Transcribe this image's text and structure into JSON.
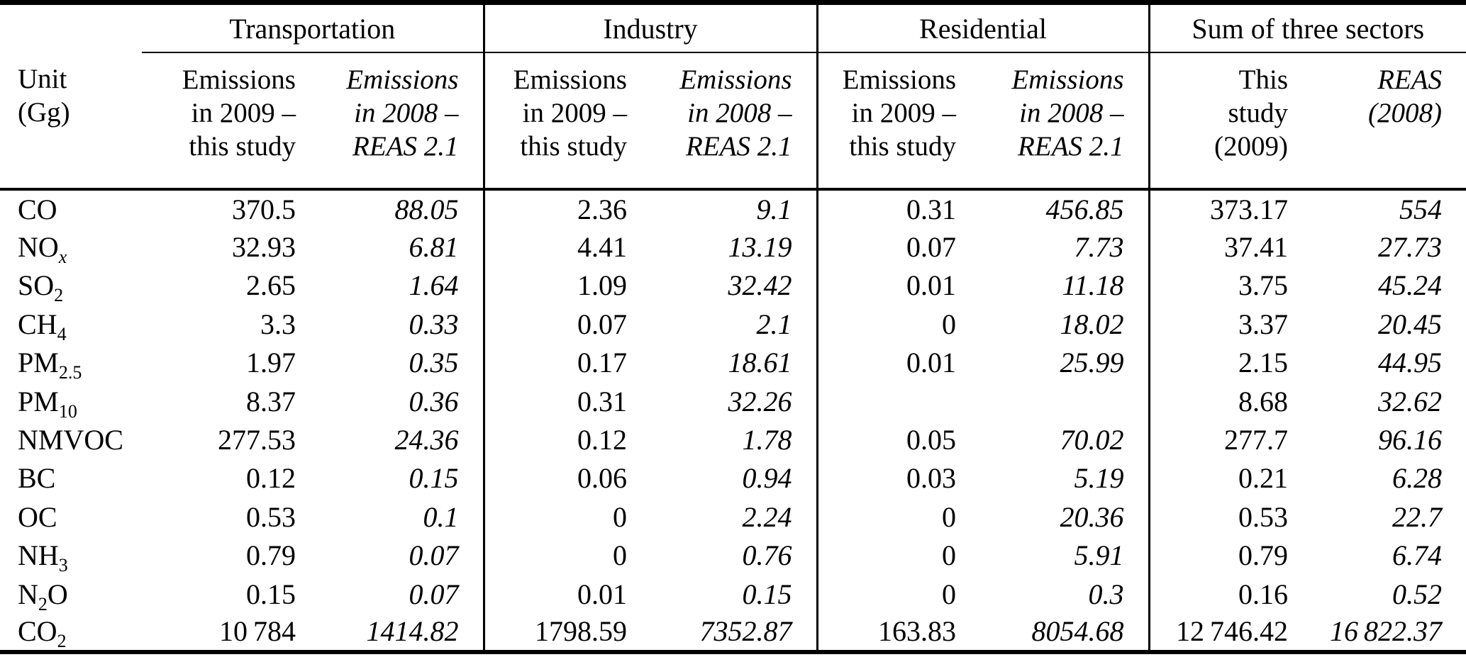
{
  "table": {
    "colors": {
      "text": "#000000",
      "rule": "#000000",
      "background": "#ffffff"
    },
    "unit_header": {
      "line1": "Unit",
      "line2": "(Gg)"
    },
    "sectors": [
      "Transportation",
      "Industry",
      "Residential",
      "Sum of three sectors"
    ],
    "col_headers": [
      {
        "lines": [
          "Emissions",
          "in 2009 –",
          "this study"
        ],
        "italic": false
      },
      {
        "lines": [
          "Emissions",
          "in 2008 –",
          "REAS 2.1"
        ],
        "italic": true
      },
      {
        "lines": [
          "Emissions",
          "in 2009 –",
          "this study"
        ],
        "italic": false
      },
      {
        "lines": [
          "Emissions",
          "in 2008 –",
          "REAS 2.1"
        ],
        "italic": true
      },
      {
        "lines": [
          "Emissions",
          "in 2009 –",
          "this study"
        ],
        "italic": false
      },
      {
        "lines": [
          "Emissions",
          "in 2008 –",
          "REAS 2.1"
        ],
        "italic": true
      },
      {
        "lines": [
          "This",
          "study",
          "(2009)"
        ],
        "italic": false
      },
      {
        "lines": [
          "REAS",
          "(2008)"
        ],
        "italic": true
      }
    ],
    "rows": [
      {
        "species": "CO",
        "label_parts": [
          {
            "t": "CO"
          }
        ],
        "cells": [
          "370.5",
          "88.05",
          "2.36",
          "9.1",
          "0.31",
          "456.85",
          "373.17",
          "554"
        ]
      },
      {
        "species": "NOx",
        "label_parts": [
          {
            "t": "NO"
          },
          {
            "t": "x",
            "sub": true,
            "italic": true
          }
        ],
        "cells": [
          "32.93",
          "6.81",
          "4.41",
          "13.19",
          "0.07",
          "7.73",
          "37.41",
          "27.73"
        ]
      },
      {
        "species": "SO2",
        "label_parts": [
          {
            "t": "SO"
          },
          {
            "t": "2",
            "sub": true
          }
        ],
        "cells": [
          "2.65",
          "1.64",
          "1.09",
          "32.42",
          "0.01",
          "11.18",
          "3.75",
          "45.24"
        ]
      },
      {
        "species": "CH4",
        "label_parts": [
          {
            "t": "CH"
          },
          {
            "t": "4",
            "sub": true
          }
        ],
        "cells": [
          "3.3",
          "0.33",
          "0.07",
          "2.1",
          "0",
          "18.02",
          "3.37",
          "20.45"
        ]
      },
      {
        "species": "PM2.5",
        "label_parts": [
          {
            "t": "PM"
          },
          {
            "t": "2.5",
            "sub": true
          }
        ],
        "cells": [
          "1.97",
          "0.35",
          "0.17",
          "18.61",
          "0.01",
          "25.99",
          "2.15",
          "44.95"
        ]
      },
      {
        "species": "PM10",
        "label_parts": [
          {
            "t": "PM"
          },
          {
            "t": "10",
            "sub": true
          }
        ],
        "cells": [
          "8.37",
          "0.36",
          "0.31",
          "32.26",
          "",
          "",
          "8.68",
          "32.62"
        ]
      },
      {
        "species": "NMVOC",
        "label_parts": [
          {
            "t": "NMVOC"
          }
        ],
        "cells": [
          "277.53",
          "24.36",
          "0.12",
          "1.78",
          "0.05",
          "70.02",
          "277.7",
          "96.16"
        ]
      },
      {
        "species": "BC",
        "label_parts": [
          {
            "t": "BC"
          }
        ],
        "cells": [
          "0.12",
          "0.15",
          "0.06",
          "0.94",
          "0.03",
          "5.19",
          "0.21",
          "6.28"
        ]
      },
      {
        "species": "OC",
        "label_parts": [
          {
            "t": "OC"
          }
        ],
        "cells": [
          "0.53",
          "0.1",
          "0",
          "2.24",
          "0",
          "20.36",
          "0.53",
          "22.7"
        ]
      },
      {
        "species": "NH3",
        "label_parts": [
          {
            "t": "NH"
          },
          {
            "t": "3",
            "sub": true
          }
        ],
        "cells": [
          "0.79",
          "0.07",
          "0",
          "0.76",
          "0",
          "5.91",
          "0.79",
          "6.74"
        ]
      },
      {
        "species": "N2O",
        "label_parts": [
          {
            "t": "N"
          },
          {
            "t": "2",
            "sub": true
          },
          {
            "t": "O"
          }
        ],
        "cells": [
          "0.15",
          "0.07",
          "0.01",
          "0.15",
          "0",
          "0.3",
          "0.16",
          "0.52"
        ]
      },
      {
        "species": "CO2",
        "label_parts": [
          {
            "t": "CO"
          },
          {
            "t": "2",
            "sub": true
          }
        ],
        "cells": [
          "10 784",
          "1414.82",
          "1798.59",
          "7352.87",
          "163.83",
          "8054.68",
          "12 746.42",
          "16 822.37"
        ]
      }
    ]
  }
}
